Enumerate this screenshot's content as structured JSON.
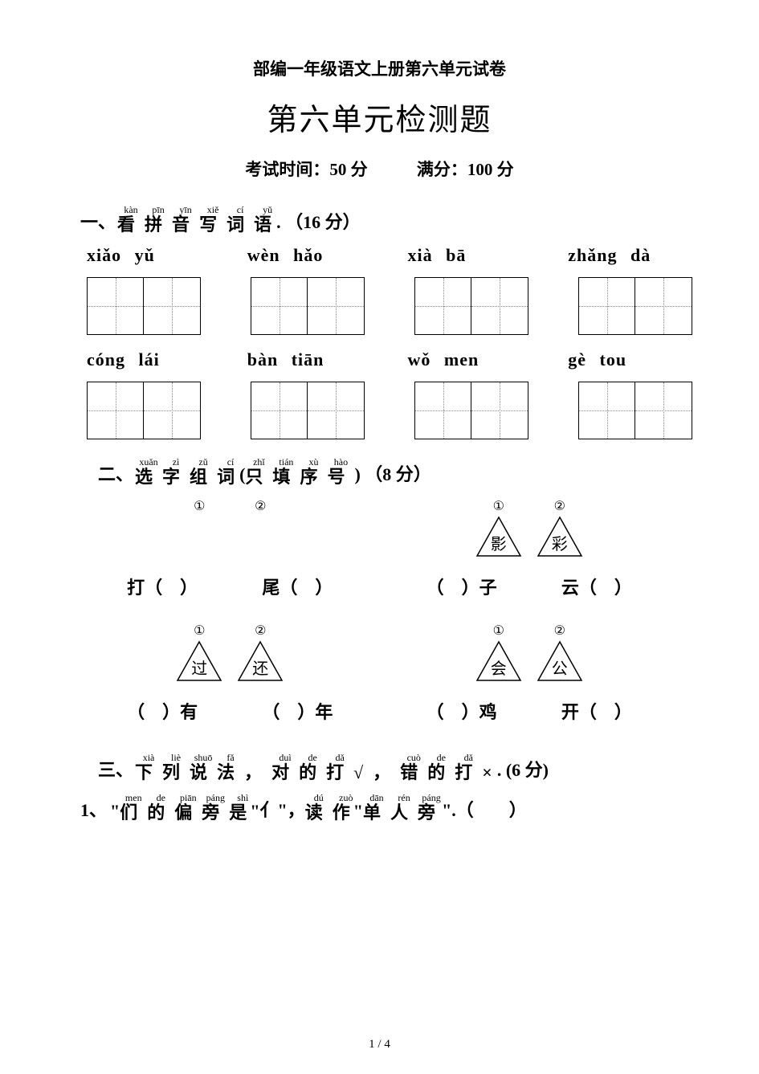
{
  "subtitle": "部编一年级语文上册第六单元试卷",
  "title": "第六单元检测题",
  "exam_time": "考试时间：50 分",
  "full_score": "满分：100 分",
  "section1": {
    "number": "一、",
    "ruby": [
      {
        "rt": "kàn",
        "rb": "看"
      },
      {
        "rt": "pīn",
        "rb": "拼"
      },
      {
        "rt": "yīn",
        "rb": "音"
      },
      {
        "rt": "xiě",
        "rb": "写"
      },
      {
        "rt": "cí",
        "rb": "词"
      },
      {
        "rt": "yǔ",
        "rb": "语"
      }
    ],
    "suffix": ". （16 分）",
    "row1": [
      "xiǎo yǔ",
      "wèn hǎo",
      "xià bā",
      "zhǎng dà"
    ],
    "row2": [
      "cóng lái",
      "bàn tiān",
      "wǒ men",
      "gè tou"
    ]
  },
  "section2": {
    "number": "二、",
    "ruby": [
      {
        "rt": "xuǎn",
        "rb": "选"
      },
      {
        "rt": "zì",
        "rb": "字"
      },
      {
        "rt": "zǔ",
        "rb": "组"
      },
      {
        "rt": "cí",
        "rb": "词"
      },
      {
        "rt": "zhǐ",
        "rb": "只"
      },
      {
        "rt": "tián",
        "rb": "填"
      },
      {
        "rt": "xù",
        "rb": "序"
      },
      {
        "rt": "hào",
        "rb": "号"
      }
    ],
    "suffix_pre": "(",
    "suffix_mid": ") （",
    "suffix_bold": "8 分",
    "suffix_end": "）",
    "groups": [
      {
        "triangles": [
          {
            "num": "①",
            "char": ""
          },
          {
            "num": "②",
            "char": ""
          }
        ],
        "empty_tri": true,
        "fills": [
          "打（　）",
          "尾（　）"
        ]
      },
      {
        "triangles": [
          {
            "num": "①",
            "char": "影"
          },
          {
            "num": "②",
            "char": "彩"
          }
        ],
        "empty_tri": false,
        "fills": [
          "（　）子",
          "云（　）"
        ]
      },
      {
        "triangles": [
          {
            "num": "①",
            "char": "过"
          },
          {
            "num": "②",
            "char": "还"
          }
        ],
        "empty_tri": false,
        "fills": [
          "（　）有",
          "（　）年"
        ]
      },
      {
        "triangles": [
          {
            "num": "①",
            "char": "会"
          },
          {
            "num": "②",
            "char": "公"
          }
        ],
        "empty_tri": false,
        "fills": [
          "（　）鸡",
          "开（　）"
        ]
      }
    ]
  },
  "section3": {
    "number": "三、",
    "ruby": [
      {
        "rt": "xià",
        "rb": "下"
      },
      {
        "rt": "liè",
        "rb": "列"
      },
      {
        "rt": "shuō",
        "rb": "说"
      },
      {
        "rt": "fǎ",
        "rb": "法"
      },
      {
        "rt": "",
        "rb": "，"
      },
      {
        "rt": "duì",
        "rb": "对"
      },
      {
        "rt": "de",
        "rb": "的"
      },
      {
        "rt": "dǎ",
        "rb": "打"
      },
      {
        "rt": "",
        "rb": "√"
      },
      {
        "rt": "",
        "rb": "，"
      },
      {
        "rt": "cuò",
        "rb": "错"
      },
      {
        "rt": "de",
        "rb": "的"
      },
      {
        "rt": "dǎ",
        "rb": "打"
      },
      {
        "rt": "",
        "rb": "×"
      }
    ],
    "suffix": ". (6 分)",
    "line1_num": "1、",
    "line1_ruby_a": [
      {
        "rt": "men",
        "rb": "们"
      },
      {
        "rt": "de",
        "rb": "的"
      },
      {
        "rt": "piān",
        "rb": "偏"
      },
      {
        "rt": "páng",
        "rb": "旁"
      },
      {
        "rt": "shì",
        "rb": "是"
      }
    ],
    "line1_mid_a": "\"",
    "line1_mid_b": "\"",
    "line1_ruby_b": [
      {
        "rt": "dān",
        "rb": "单"
      }
    ],
    "line1_ruby_c": [
      {
        "rt": "dú",
        "rb": "读"
      },
      {
        "rt": "zuò",
        "rb": "作"
      }
    ],
    "line1_ruby_d": [
      {
        "rt": "dān",
        "rb": "单"
      },
      {
        "rt": "rén",
        "rb": "人"
      },
      {
        "rt": "páng",
        "rb": "旁"
      }
    ],
    "line1_prefix_quote": "\"",
    "line1_char_yi": "亻",
    "line1_comma": "\"，",
    "line1_quote2": "\"",
    "line1_end": "\".（　　）"
  },
  "page": "1 / 4"
}
